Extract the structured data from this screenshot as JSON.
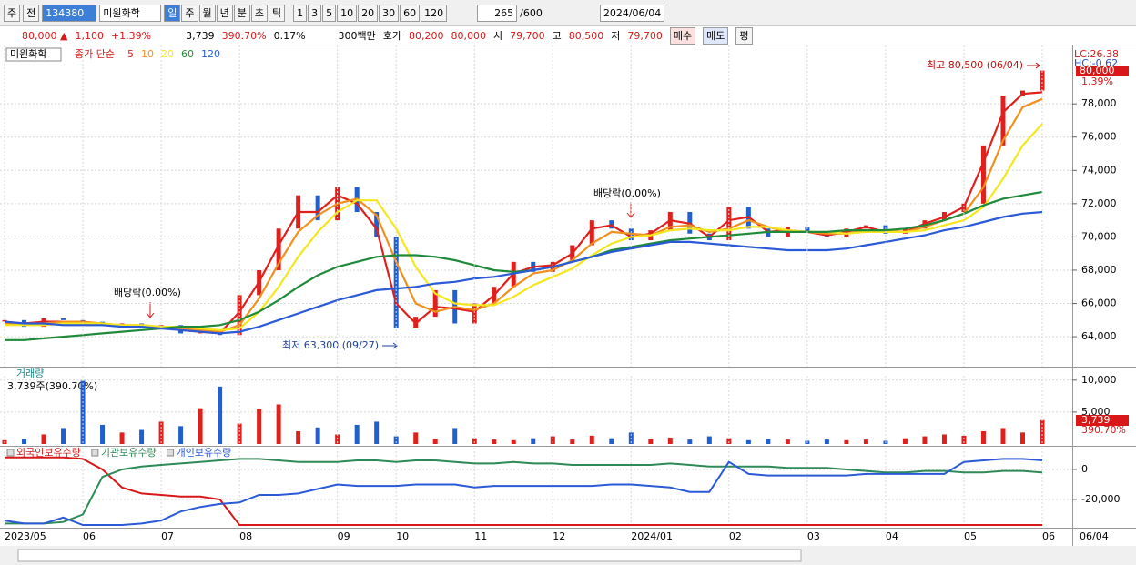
{
  "toolbar": {
    "market": "주",
    "prev": "전",
    "code": "134380",
    "name": "미원화학",
    "periods": [
      "일",
      "주",
      "월",
      "년",
      "분",
      "초",
      "틱"
    ],
    "intervals": [
      "1",
      "3",
      "5",
      "10",
      "20",
      "30",
      "60",
      "120"
    ],
    "count": "265",
    "max": "/600",
    "date": "2024/06/04"
  },
  "info_bar": {
    "price": "80,000 ▲",
    "change": "1,100",
    "rate": "+1.39%",
    "volume": "3,739",
    "volume_ratio": "390.70%",
    "turnover": "0.17%",
    "amount": "300백만",
    "ask_label": "호가",
    "ask": "80,200",
    "bid": "80,000",
    "open_label": "시",
    "open": "79,700",
    "high_label": "고",
    "high": "80,500",
    "low_label": "저",
    "low": "79,700",
    "buy": "매수",
    "sell": "매도",
    "eval": "평"
  },
  "chart_data": [
    {
      "type": "line",
      "stock_label": "미원화학",
      "legend_title": "종가 단순",
      "high_note": "최고 80,500 (06/04)",
      "low_note": "최저 63,300 (09/27)",
      "annotations": [
        "배당락(0.00%)",
        "배당락(0.00%)"
      ],
      "lc": "LC:26.38",
      "hc": "HC:-0.62",
      "price_tag": "80,000",
      "rate_tag": "1.39%",
      "ylim": [
        62200,
        81400
      ],
      "yticks": [
        {
          "value": 64000,
          "label": "64,000"
        },
        {
          "value": 66000,
          "label": "66,000"
        },
        {
          "value": 68000,
          "label": "68,000"
        },
        {
          "value": 70000,
          "label": "70,000"
        },
        {
          "value": 72000,
          "label": "72,000"
        },
        {
          "value": 74000,
          "label": "74,000"
        },
        {
          "value": 76000,
          "label": "76,000"
        },
        {
          "value": 78000,
          "label": "78,000"
        }
      ],
      "grid": true,
      "up_color": "#e0201c",
      "down_color": "#1f5fd0",
      "close": [
        65000,
        64600,
        65100,
        65000,
        64900,
        64700,
        64800,
        64500,
        64700,
        64200,
        64300,
        64100,
        66500,
        68000,
        70500,
        72500,
        71000,
        73000,
        71500,
        70000,
        64500,
        65200,
        66800,
        64800,
        66000,
        67000,
        68500,
        67900,
        68500,
        69500,
        71000,
        70500,
        69800,
        70400,
        71500,
        70200,
        69800,
        71800,
        70500,
        70000,
        70600,
        70300,
        70000,
        70500,
        70700,
        70200,
        70500,
        71000,
        71500,
        72000,
        75500,
        78500,
        78800,
        80000
      ],
      "series": [
        {
          "name": "5",
          "color": "#e0201c",
          "values": [
            64900,
            64800,
            64900,
            64900,
            64900,
            64700,
            64700,
            64600,
            64600,
            64400,
            64300,
            64200,
            65500,
            67300,
            69500,
            71500,
            71500,
            72500,
            72000,
            70500,
            66000,
            64800,
            65800,
            65700,
            65500,
            66500,
            67800,
            68200,
            68300,
            69000,
            70500,
            70700,
            70000,
            70200,
            71000,
            70800,
            70000,
            71000,
            71200,
            70300,
            70400,
            70300,
            70100,
            70300,
            70600,
            70300,
            70300,
            70800,
            71200,
            71800,
            74500,
            77500,
            78600,
            78700
          ]
        },
        {
          "name": "10",
          "color": "#f0901e",
          "values": [
            64800,
            64800,
            64800,
            64900,
            64900,
            64800,
            64700,
            64700,
            64600,
            64500,
            64400,
            64300,
            64700,
            66300,
            68400,
            70300,
            71300,
            72000,
            72300,
            71300,
            68500,
            66000,
            65500,
            65800,
            65600,
            66000,
            67000,
            67800,
            68000,
            68600,
            69600,
            70300,
            70200,
            70100,
            70600,
            70700,
            70300,
            70500,
            71000,
            70600,
            70300,
            70300,
            70200,
            70200,
            70400,
            70400,
            70300,
            70600,
            71000,
            71400,
            73000,
            75800,
            77800,
            78300
          ]
        },
        {
          "name": "20",
          "color": "#f5e61e",
          "values": [
            64700,
            64700,
            64700,
            64800,
            64800,
            64800,
            64700,
            64700,
            64600,
            64600,
            64500,
            64400,
            64500,
            65500,
            67000,
            68800,
            70300,
            71500,
            72200,
            72200,
            70500,
            68200,
            66600,
            66000,
            65900,
            65900,
            66400,
            67100,
            67600,
            68100,
            68900,
            69600,
            70000,
            70100,
            70400,
            70500,
            70400,
            70400,
            70600,
            70600,
            70400,
            70300,
            70300,
            70200,
            70300,
            70300,
            70300,
            70400,
            70700,
            71000,
            71800,
            73500,
            75500,
            76800
          ]
        },
        {
          "name": "60",
          "color": "#1f8a3a",
          "values": [
            63800,
            63800,
            63900,
            64000,
            64100,
            64200,
            64300,
            64400,
            64500,
            64600,
            64600,
            64700,
            65000,
            65500,
            66200,
            67000,
            67700,
            68200,
            68500,
            68800,
            68900,
            68900,
            68800,
            68600,
            68300,
            68000,
            67900,
            68000,
            68200,
            68500,
            68800,
            69200,
            69400,
            69600,
            69800,
            69900,
            70000,
            70100,
            70200,
            70300,
            70300,
            70300,
            70300,
            70400,
            70400,
            70400,
            70500,
            70700,
            71000,
            71400,
            71900,
            72300,
            72500,
            72700
          ]
        },
        {
          "name": "120",
          "color": "#2a5ad8",
          "values": [
            64900,
            64800,
            64800,
            64700,
            64700,
            64700,
            64600,
            64600,
            64500,
            64400,
            64300,
            64200,
            64300,
            64600,
            65000,
            65400,
            65800,
            66200,
            66500,
            66800,
            66900,
            67000,
            67200,
            67300,
            67500,
            67600,
            67800,
            68000,
            68200,
            68500,
            68800,
            69100,
            69300,
            69500,
            69700,
            69700,
            69600,
            69500,
            69400,
            69300,
            69200,
            69200,
            69200,
            69300,
            69500,
            69700,
            69900,
            70100,
            70400,
            70600,
            70900,
            71200,
            71400,
            71500
          ]
        }
      ]
    },
    {
      "type": "bar",
      "title": "거래량",
      "note": "3,739주(390.70%)",
      "tags": [
        "3,739",
        "390.70%"
      ],
      "ylim": [
        0,
        10400
      ],
      "yticks": [
        {
          "value": 5000,
          "label": "5,000"
        },
        {
          "value": 10000,
          "label": "10,000"
        }
      ],
      "grid": true,
      "values": [
        600,
        800,
        1500,
        2500,
        9900,
        3000,
        1800,
        2200,
        3500,
        2800,
        5600,
        9000,
        3200,
        5500,
        6200,
        2000,
        2600,
        1500,
        3000,
        3500,
        1200,
        1800,
        800,
        2500,
        900,
        700,
        600,
        900,
        1200,
        700,
        1300,
        900,
        1800,
        800,
        1000,
        700,
        1200,
        900,
        600,
        800,
        700,
        500,
        700,
        600,
        700,
        500,
        900,
        1200,
        1500,
        1300,
        2000,
        2500,
        1800,
        3739
      ]
    },
    {
      "type": "line",
      "ylim": [
        -38800,
        13300
      ],
      "yticks": [
        0,
        {
          "value": -20000,
          "label": "-20,000"
        }
      ],
      "grid": true,
      "last_date": "06/04",
      "categories": [
        "2023/05",
        null,
        null,
        null,
        "06",
        null,
        null,
        null,
        "07",
        null,
        null,
        null,
        "08",
        null,
        null,
        null,
        null,
        "09",
        null,
        null,
        "10",
        null,
        null,
        null,
        "11",
        null,
        null,
        null,
        "12",
        null,
        null,
        null,
        "2024/01",
        null,
        null,
        null,
        null,
        "02",
        null,
        null,
        null,
        "03",
        null,
        null,
        null,
        "04",
        null,
        null,
        null,
        "05",
        null,
        null,
        null,
        "06"
      ],
      "series": [
        {
          "name": "외국인보유수량",
          "color": "#d81818",
          "values": [
            8000,
            8000,
            8000,
            8000,
            7000,
            0,
            -12000,
            -16000,
            -17000,
            -18000,
            -18000,
            -20000,
            -37000,
            -37000,
            -37000,
            -37000,
            -37000,
            -37000,
            -37000,
            -37000,
            -37000,
            -37000,
            -37000,
            -37000,
            -37000,
            -37000,
            -37000,
            -37000,
            -37000,
            -37000,
            -37000,
            -37000,
            -37000,
            -37000,
            -37000,
            -37000,
            -37000,
            -37000,
            -37000,
            -37000,
            -37000,
            -37000,
            -37000,
            -37000,
            -37000,
            -37000,
            -37000,
            -37000,
            -37000,
            -37000,
            -37000,
            -37000,
            -37000,
            -37000
          ]
        },
        {
          "name": "기관보유수량",
          "color": "#2e8b57",
          "values": [
            -36000,
            -36000,
            -36000,
            -35000,
            -30000,
            -5000,
            0,
            2000,
            3000,
            4000,
            5000,
            6000,
            7000,
            7000,
            6000,
            5000,
            5000,
            5000,
            6000,
            6000,
            5000,
            6000,
            6000,
            5000,
            4000,
            4000,
            5000,
            4000,
            4000,
            3000,
            3000,
            3000,
            3000,
            3000,
            4000,
            3000,
            2000,
            2000,
            2000,
            2000,
            1000,
            1000,
            1000,
            0,
            -1000,
            -2000,
            -2000,
            -1000,
            -1000,
            -2000,
            -2000,
            -1000,
            -1000,
            -2000
          ]
        },
        {
          "name": "개인보유수량",
          "color": "#2a5ad8",
          "values": [
            -34000,
            -36000,
            -36000,
            -32000,
            -37000,
            -37000,
            -37000,
            -36000,
            -34000,
            -28000,
            -25000,
            -23000,
            -22000,
            -17000,
            -17000,
            -16000,
            -13000,
            -10000,
            -11000,
            -11000,
            -11000,
            -10000,
            -10000,
            -10000,
            -12000,
            -11000,
            -11000,
            -11000,
            -11000,
            -11000,
            -11000,
            -10000,
            -10000,
            -11000,
            -12000,
            -15000,
            -15000,
            5000,
            -3000,
            -4000,
            -4000,
            -4000,
            -4000,
            -4000,
            -3000,
            -3000,
            -3000,
            -3000,
            -3000,
            5000,
            6000,
            7000,
            7000,
            6000
          ]
        }
      ]
    }
  ]
}
